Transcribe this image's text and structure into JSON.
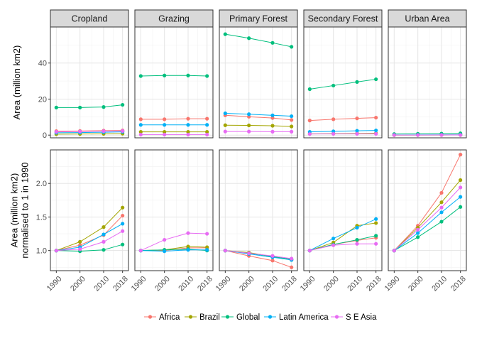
{
  "chart_data": {
    "type": "line",
    "facets": [
      "Cropland",
      "Grazing",
      "Primary Forest",
      "Secondary Forest",
      "Urban Area"
    ],
    "x": [
      1990,
      2000,
      2010,
      2018
    ],
    "x_ticks": [
      "1990",
      "2000",
      "2010",
      "2018"
    ],
    "legend": {
      "placement": "bottom",
      "entries": [
        "Africa",
        "Brazil",
        "Global",
        "Latin America",
        "S E Asia"
      ],
      "colors": [
        "#F8766D",
        "#A3A500",
        "#00BF7D",
        "#00B0F6",
        "#E76BF3"
      ]
    },
    "rows": [
      {
        "ylabel": [
          "Area (million km2)"
        ],
        "ylim": [
          -1.5,
          60
        ],
        "y_ticks": [
          0,
          20,
          40
        ],
        "y_tick_labels": [
          "0",
          "20",
          "40"
        ],
        "panels": [
          {
            "facet": "Cropland",
            "series": [
              {
                "name": "Africa",
                "values": [
                  2.2,
                  2.3,
                  2.5,
                  2.6
                ]
              },
              {
                "name": "Brazil",
                "values": [
                  0.5,
                  0.6,
                  0.7,
                  0.8
                ]
              },
              {
                "name": "Global",
                "values": [
                  15.3,
                  15.3,
                  15.6,
                  16.8
                ]
              },
              {
                "name": "Latin America",
                "values": [
                  1.3,
                  1.4,
                  1.6,
                  1.8
                ]
              },
              {
                "name": "S E Asia",
                "values": [
                  1.8,
                  2.0,
                  2.2,
                  2.3
                ]
              }
            ]
          },
          {
            "facet": "Grazing",
            "series": [
              {
                "name": "Africa",
                "values": [
                  8.8,
                  8.8,
                  9.1,
                  9.1
                ]
              },
              {
                "name": "Brazil",
                "values": [
                  1.8,
                  1.8,
                  1.8,
                  1.8
                ]
              },
              {
                "name": "Global",
                "values": [
                  32.8,
                  33.1,
                  33.1,
                  32.8
                ]
              },
              {
                "name": "Latin America",
                "values": [
                  5.7,
                  5.7,
                  5.7,
                  5.7
                ]
              },
              {
                "name": "S E Asia",
                "values": [
                  0.3,
                  0.3,
                  0.3,
                  0.3
                ]
              }
            ]
          },
          {
            "facet": "Primary Forest",
            "series": [
              {
                "name": "Africa",
                "values": [
                  11.0,
                  10.2,
                  9.5,
                  8.4
                ]
              },
              {
                "name": "Brazil",
                "values": [
                  5.5,
                  5.4,
                  5.2,
                  4.8
                ]
              },
              {
                "name": "Global",
                "values": [
                  56.0,
                  53.8,
                  51.2,
                  49.0
                ]
              },
              {
                "name": "Latin America",
                "values": [
                  12.1,
                  11.6,
                  11.0,
                  10.5
                ]
              },
              {
                "name": "S E Asia",
                "values": [
                  2.0,
                  2.0,
                  1.9,
                  1.9
                ]
              }
            ]
          },
          {
            "facet": "Secondary Forest",
            "series": [
              {
                "name": "Africa",
                "values": [
                  8.1,
                  8.8,
                  9.3,
                  9.7
                ]
              },
              {
                "name": "Brazil",
                "values": [
                  0.7,
                  0.8,
                  0.9,
                  1.0
                ]
              },
              {
                "name": "Global",
                "values": [
                  25.5,
                  27.5,
                  29.5,
                  31.0
                ]
              },
              {
                "name": "Latin America",
                "values": [
                  1.8,
                  2.1,
                  2.4,
                  2.6
                ]
              },
              {
                "name": "S E Asia",
                "values": [
                  0.6,
                  0.7,
                  0.7,
                  0.7
                ]
              }
            ]
          },
          {
            "facet": "Urban Area",
            "series": [
              {
                "name": "Africa",
                "values": [
                  0.05,
                  0.07,
                  0.09,
                  0.12
                ]
              },
              {
                "name": "Brazil",
                "values": [
                  0.03,
                  0.04,
                  0.05,
                  0.06
                ]
              },
              {
                "name": "Global",
                "values": [
                  0.6,
                  0.75,
                  0.85,
                  1.0
                ]
              },
              {
                "name": "Latin America",
                "values": [
                  0.1,
                  0.12,
                  0.15,
                  0.18
                ]
              },
              {
                "name": "S E Asia",
                "values": [
                  0.04,
                  0.05,
                  0.07,
                  0.08
                ]
              }
            ]
          }
        ]
      },
      {
        "ylabel": [
          "Area (million km2)",
          "normalised to 1 in 1990"
        ],
        "ylim": [
          0.7,
          2.5
        ],
        "y_ticks": [
          1.0,
          1.5,
          2.0
        ],
        "y_tick_labels": [
          "1.0",
          "1.5",
          "2.0"
        ],
        "panels": [
          {
            "facet": "Cropland",
            "series": [
              {
                "name": "Africa",
                "values": [
                  1.0,
                  1.08,
                  1.23,
                  1.52
                ]
              },
              {
                "name": "Brazil",
                "values": [
                  1.0,
                  1.13,
                  1.35,
                  1.64
                ]
              },
              {
                "name": "Global",
                "values": [
                  1.0,
                  0.99,
                  1.01,
                  1.09
                ]
              },
              {
                "name": "Latin America",
                "values": [
                  1.0,
                  1.05,
                  1.24,
                  1.4
                ]
              },
              {
                "name": "S E Asia",
                "values": [
                  1.0,
                  1.02,
                  1.13,
                  1.29
                ]
              }
            ]
          },
          {
            "facet": "Grazing",
            "series": [
              {
                "name": "Africa",
                "values": [
                  1.0,
                  1.0,
                  1.04,
                  1.04
                ]
              },
              {
                "name": "Brazil",
                "values": [
                  1.0,
                  1.01,
                  1.06,
                  1.05
                ]
              },
              {
                "name": "Global",
                "values": [
                  1.0,
                  1.01,
                  1.02,
                  1.0
                ]
              },
              {
                "name": "Latin America",
                "values": [
                  1.0,
                  0.99,
                  1.01,
                  1.01
                ]
              },
              {
                "name": "S E Asia",
                "values": [
                  1.0,
                  1.16,
                  1.26,
                  1.25
                ]
              }
            ]
          },
          {
            "facet": "Primary Forest",
            "series": [
              {
                "name": "Africa",
                "values": [
                  1.0,
                  0.92,
                  0.85,
                  0.75
                ]
              },
              {
                "name": "Brazil",
                "values": [
                  1.0,
                  0.97,
                  0.91,
                  0.86
                ]
              },
              {
                "name": "Global",
                "values": [
                  1.0,
                  0.96,
                  0.91,
                  0.87
                ]
              },
              {
                "name": "Latin America",
                "values": [
                  1.0,
                  0.95,
                  0.9,
                  0.86
                ]
              },
              {
                "name": "S E Asia",
                "values": [
                  1.0,
                  0.96,
                  0.92,
                  0.88
                ]
              }
            ]
          },
          {
            "facet": "Secondary Forest",
            "series": [
              {
                "name": "Africa",
                "values": [
                  1.0,
                  1.09,
                  1.15,
                  1.19
                ]
              },
              {
                "name": "Brazil",
                "values": [
                  1.0,
                  1.12,
                  1.37,
                  1.41
                ]
              },
              {
                "name": "Global",
                "values": [
                  1.0,
                  1.09,
                  1.16,
                  1.22
                ]
              },
              {
                "name": "Latin America",
                "values": [
                  1.0,
                  1.18,
                  1.34,
                  1.47
                ]
              },
              {
                "name": "S E Asia",
                "values": [
                  1.0,
                  1.08,
                  1.1,
                  1.1
                ]
              }
            ]
          },
          {
            "facet": "Urban Area",
            "series": [
              {
                "name": "Africa",
                "values": [
                  1.0,
                  1.37,
                  1.86,
                  2.43
                ]
              },
              {
                "name": "Brazil",
                "values": [
                  1.0,
                  1.34,
                  1.72,
                  2.05
                ]
              },
              {
                "name": "Global",
                "values": [
                  1.0,
                  1.2,
                  1.43,
                  1.65
                ]
              },
              {
                "name": "Latin America",
                "values": [
                  1.0,
                  1.26,
                  1.57,
                  1.8
                ]
              },
              {
                "name": "S E Asia",
                "values": [
                  1.0,
                  1.31,
                  1.64,
                  1.94
                ]
              }
            ]
          }
        ]
      }
    ]
  }
}
